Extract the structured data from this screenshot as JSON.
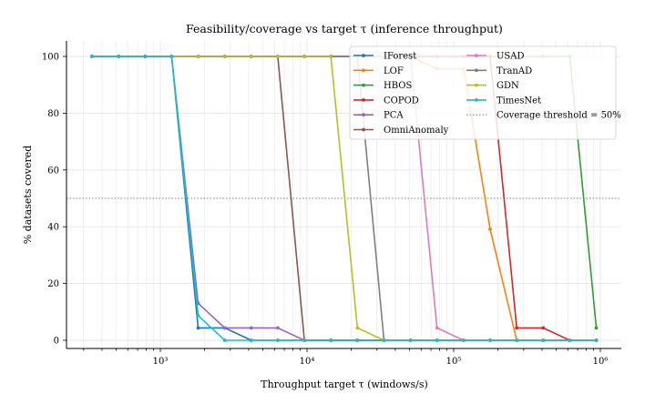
{
  "chart_data": {
    "type": "line",
    "title": "Feasibility/coverage vs target τ (inference throughput)",
    "xlabel": "Throughput target τ (windows/s)",
    "ylabel": "% datasets covered",
    "xscale": "log",
    "xlim": [
      250,
      1200000
    ],
    "ylim": [
      -3,
      105
    ],
    "xticks": [
      1000,
      10000,
      100000,
      1000000
    ],
    "xtick_labels": [
      "10³",
      "10⁴",
      "10⁵",
      "10⁶"
    ],
    "yticks": [
      0,
      20,
      40,
      60,
      80,
      100
    ],
    "ytick_labels": [
      "0",
      "20",
      "40",
      "60",
      "80",
      "100"
    ],
    "grid": true,
    "legend_position": "top-right",
    "x": [
      342,
      519,
      787,
      1194,
      1811,
      2747,
      4167,
      6321,
      9589,
      14546,
      22066,
      33473,
      50777,
      77026,
      116844,
      177246,
      268871,
      407862,
      618705,
      938544
    ],
    "series": [
      {
        "name": "IForest",
        "color": "#1f77b4",
        "values": [
          100,
          100,
          100,
          100,
          4.35,
          4.35,
          0,
          0,
          0,
          0,
          0,
          0,
          0,
          0,
          0,
          0,
          0,
          0,
          0,
          0
        ]
      },
      {
        "name": "LOF",
        "color": "#ff7f0e",
        "values": [
          100,
          100,
          100,
          100,
          100,
          100,
          100,
          100,
          100,
          100,
          100,
          100,
          100,
          95.65,
          95.65,
          39.13,
          0,
          0,
          0,
          0
        ]
      },
      {
        "name": "HBOS",
        "color": "#2ca02c",
        "values": [
          100,
          100,
          100,
          100,
          100,
          100,
          100,
          100,
          100,
          100,
          100,
          100,
          100,
          100,
          100,
          100,
          100,
          100,
          100,
          4.35
        ]
      },
      {
        "name": "COPOD",
        "color": "#d62728",
        "values": [
          100,
          100,
          100,
          100,
          100,
          100,
          100,
          100,
          100,
          100,
          100,
          100,
          100,
          100,
          100,
          100,
          4.35,
          4.35,
          0,
          0
        ]
      },
      {
        "name": "PCA",
        "color": "#9467bd",
        "values": [
          100,
          100,
          100,
          100,
          13.04,
          4.35,
          4.35,
          4.35,
          0,
          0,
          0,
          0,
          0,
          0,
          0,
          0,
          0,
          0,
          0,
          0
        ]
      },
      {
        "name": "OmniAnomaly",
        "color": "#8c564b",
        "values": [
          100,
          100,
          100,
          100,
          100,
          100,
          100,
          100,
          0,
          0,
          0,
          0,
          0,
          0,
          0,
          0,
          0,
          0,
          0,
          0
        ]
      },
      {
        "name": "USAD",
        "color": "#e377c2",
        "values": [
          100,
          100,
          100,
          100,
          100,
          100,
          100,
          100,
          100,
          100,
          100,
          100,
          100,
          4.35,
          0,
          0,
          0,
          0,
          0,
          0
        ]
      },
      {
        "name": "TranAD",
        "color": "#7f7f7f",
        "values": [
          100,
          100,
          100,
          100,
          100,
          100,
          100,
          100,
          100,
          100,
          100,
          0,
          0,
          0,
          0,
          0,
          0,
          0,
          0,
          0
        ]
      },
      {
        "name": "GDN",
        "color": "#bcbd22",
        "values": [
          100,
          100,
          100,
          100,
          100,
          100,
          100,
          100,
          100,
          100,
          4.35,
          0,
          0,
          0,
          0,
          0,
          0,
          0,
          0,
          0
        ]
      },
      {
        "name": "TimesNet",
        "color": "#17becf",
        "values": [
          100,
          100,
          100,
          100,
          8.7,
          0,
          0,
          0,
          0,
          0,
          0,
          0,
          0,
          0,
          0,
          0,
          0,
          0,
          0,
          0
        ]
      }
    ],
    "threshold": {
      "label": "Coverage threshold = 50%",
      "value": 50,
      "color": "#808080"
    }
  }
}
